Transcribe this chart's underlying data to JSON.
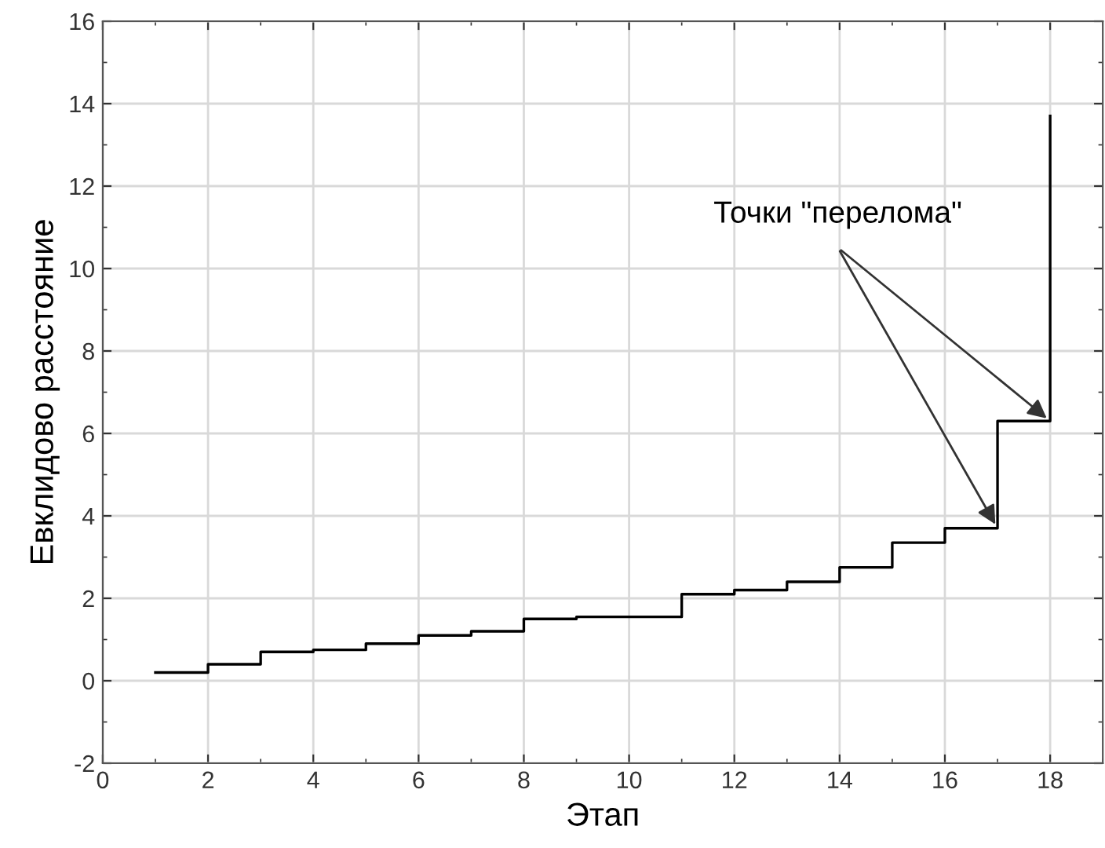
{
  "chart_data": {
    "type": "step",
    "xlabel": "Этап",
    "ylabel": "Евклидово расстояние",
    "x": [
      1,
      2,
      3,
      4,
      5,
      6,
      7,
      8,
      9,
      10,
      11,
      12,
      13,
      14,
      15,
      16,
      17,
      18
    ],
    "series": [
      {
        "color": "#000000",
        "values": [
          0.2,
          0.4,
          0.7,
          0.75,
          0.9,
          1.1,
          1.2,
          1.5,
          1.55,
          1.55,
          2.1,
          2.2,
          2.4,
          2.75,
          3.35,
          3.7,
          6.3,
          13.7
        ]
      }
    ],
    "xlim": [
      0,
      19
    ],
    "xticks": [
      0,
      2,
      4,
      6,
      8,
      10,
      12,
      14,
      16,
      18
    ],
    "ylim": [
      -2,
      16
    ],
    "yticks": [
      -2,
      0,
      2,
      4,
      6,
      8,
      10,
      12,
      14,
      16
    ],
    "grid": true,
    "marker": "none",
    "line_style": "solid",
    "annotations": [
      {
        "text": "Точки \"перелома\"",
        "x": 17,
        "y": 3.7
      }
    ]
  }
}
